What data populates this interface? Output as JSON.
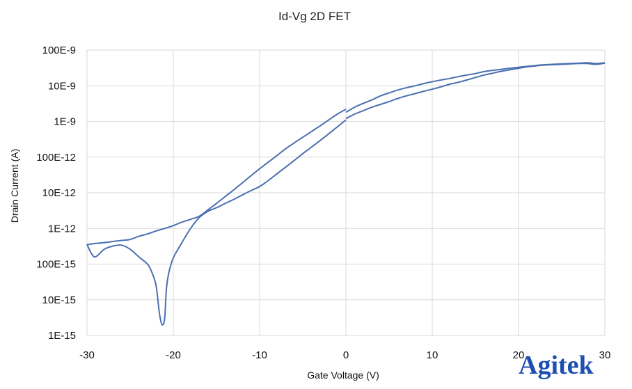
{
  "chart_data": {
    "type": "line",
    "title": "Id-Vg 2D FET",
    "xlabel": "Gate Voltage (V)",
    "ylabel": "Drain Current (A)",
    "xlim": [
      -30,
      30
    ],
    "ylim": [
      1e-15,
      1e-07
    ],
    "yscale": "log",
    "grid": true,
    "x_ticks": [
      -30,
      -20,
      -10,
      0,
      10,
      20,
      30
    ],
    "x_tick_labels": [
      "-30",
      "-20",
      "-10",
      "0",
      "10",
      "20",
      "30"
    ],
    "y_ticks": [
      1e-15,
      1e-14,
      1e-13,
      1e-12,
      1e-11,
      1e-10,
      1e-09,
      1e-08,
      1e-07
    ],
    "y_tick_labels": [
      "1E-15",
      "10E-15",
      "100E-15",
      "1E-12",
      "10E-12",
      "100E-12",
      "1E-9",
      "10E-9",
      "100E-9"
    ],
    "line_color": "#4a6fb0",
    "series": [
      {
        "x": [
          -30,
          -29,
          -28,
          -27,
          -26,
          -25,
          -24,
          -23,
          -22,
          -21,
          -20,
          -19,
          -18,
          -17,
          -16,
          -15,
          -14,
          -13,
          -12,
          -11,
          -10,
          -9,
          -8,
          -7,
          -6,
          -5,
          -4,
          -3,
          -2,
          -1,
          0
        ],
        "y": [
          3.5e-13,
          3.8e-13,
          4e-13,
          4.3e-13,
          4.6e-13,
          4.9e-13,
          6e-13,
          7e-13,
          8.5e-13,
          1e-12,
          1.2e-12,
          1.5e-12,
          1.8e-12,
          2.2e-12,
          3.3e-12,
          5e-12,
          7.8e-12,
          1.2e-11,
          1.9e-11,
          3e-11,
          4.7e-11,
          7.2e-11,
          1.1e-10,
          1.7e-10,
          2.5e-10,
          3.6e-10,
          5.2e-10,
          7.5e-10,
          1.1e-09,
          1.6e-09,
          2.2e-09
        ]
      },
      {
        "x": [
          -30,
          -29.5,
          -29,
          -28,
          -27,
          -26,
          -25,
          -24,
          -23,
          -22.5,
          -22,
          -21.6,
          -21.3,
          -21,
          -20.8,
          -20.5,
          -20,
          -19,
          -18,
          -17,
          -16,
          -15,
          -14,
          -13,
          -12,
          -11,
          -10,
          -9,
          -8,
          -7,
          -6,
          -5,
          -4,
          -3,
          -2,
          -1,
          0
        ],
        "y": [
          3.6e-13,
          2e-13,
          1.6e-13,
          2.6e-13,
          3.2e-13,
          3.4e-13,
          2.6e-13,
          1.6e-13,
          1e-13,
          6e-14,
          2.5e-14,
          4e-15,
          2e-15,
          3e-15,
          2e-14,
          6e-14,
          1.5e-13,
          4e-13,
          1e-12,
          2e-12,
          3e-12,
          3.8e-12,
          5e-12,
          6.5e-12,
          8.7e-12,
          1.15e-11,
          1.5e-11,
          2.2e-11,
          3.4e-11,
          5.2e-11,
          8e-11,
          1.25e-10,
          1.9e-10,
          2.9e-10,
          4.5e-10,
          7e-10,
          1.1e-09
        ]
      },
      {
        "x": [
          0,
          1,
          2,
          3,
          4,
          5,
          6,
          7,
          8,
          9,
          10,
          11,
          12,
          13,
          14,
          15,
          16,
          17,
          18,
          19,
          20,
          21,
          22,
          23,
          24,
          25,
          26,
          27,
          28,
          29,
          30
        ],
        "y": [
          1.8e-09,
          2.5e-09,
          3.2e-09,
          4e-09,
          5.2e-09,
          6.3e-09,
          7.6e-09,
          8.8e-09,
          1e-08,
          1.15e-08,
          1.3e-08,
          1.45e-08,
          1.6e-08,
          1.8e-08,
          2e-08,
          2.2e-08,
          2.5e-08,
          2.7e-08,
          2.9e-08,
          3.1e-08,
          3.3e-08,
          3.5e-08,
          3.7e-08,
          3.9e-08,
          4e-08,
          4.1e-08,
          4.2e-08,
          4.3e-08,
          4.4e-08,
          4.2e-08,
          4.4e-08
        ]
      },
      {
        "x": [
          0,
          1,
          2,
          3,
          4,
          5,
          6,
          7,
          8,
          9,
          10,
          11,
          12,
          13,
          14,
          15,
          16,
          17,
          18,
          19,
          20,
          21,
          22,
          23,
          24,
          25,
          26,
          27,
          28,
          29,
          30
        ],
        "y": [
          1.2e-09,
          1.6e-09,
          2e-09,
          2.5e-09,
          3e-09,
          3.6e-09,
          4.4e-09,
          5.2e-09,
          6e-09,
          7e-09,
          8e-09,
          9.3e-09,
          1.1e-08,
          1.25e-08,
          1.45e-08,
          1.7e-08,
          2e-08,
          2.25e-08,
          2.55e-08,
          2.8e-08,
          3.1e-08,
          3.4e-08,
          3.6e-08,
          3.8e-08,
          3.9e-08,
          4e-08,
          4.1e-08,
          4.2e-08,
          4.2e-08,
          4e-08,
          4.3e-08
        ]
      }
    ]
  },
  "watermark": {
    "text": "Agitek",
    "color": "#1d4fb0",
    "accent_color": "#e0262a"
  }
}
